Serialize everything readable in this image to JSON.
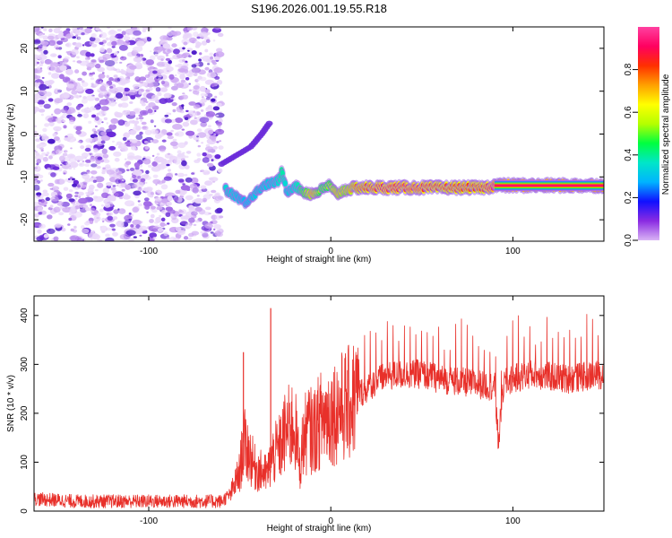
{
  "title": "S196.2026.001.19.55.R18",
  "colors": {
    "snr_line": "#e8302a",
    "spectrogram_noise": [
      "#e9d6fa",
      "#cfaaf3",
      "#a26ae6",
      "#6a2bd9",
      "#4a18c8"
    ],
    "colorbar": [
      "#d9b3f5",
      "#8a2be2",
      "#1010ff",
      "#00b4ff",
      "#00e6c8",
      "#00ff40",
      "#b4ff00",
      "#ffff00",
      "#ffa000",
      "#ff3000",
      "#ff0060",
      "#ff40a0"
    ]
  },
  "chart_data": [
    {
      "type": "heatmap",
      "name": "spectrogram",
      "xlabel": "Height of straight line (km)",
      "ylabel": "Frequency (Hz)",
      "xlim": [
        -163,
        150
      ],
      "ylim": [
        -25,
        25
      ],
      "xticks": [
        -100,
        0,
        100
      ],
      "yticks": [
        20,
        10,
        0,
        -10,
        -20
      ],
      "colorbar": {
        "label": "Normalized spectral amplitude",
        "range": [
          0,
          1
        ],
        "ticks": [
          "0.0",
          "0.2",
          "0.4",
          "0.6",
          "0.8"
        ]
      },
      "noise_region": {
        "x_from": -163,
        "x_to": -60,
        "description_level": "low"
      },
      "ridge": [
        [
          -58,
          -13
        ],
        [
          -52,
          -14.5
        ],
        [
          -47,
          -16
        ],
        [
          -42,
          -14
        ],
        [
          -37,
          -12
        ],
        [
          -33,
          -11.5
        ],
        [
          -29,
          -11
        ],
        [
          -27,
          -9
        ],
        [
          -24,
          -13.5
        ],
        [
          -20,
          -12
        ],
        [
          -15,
          -13.5
        ],
        [
          -10,
          -14
        ],
        [
          -5,
          -13
        ],
        [
          -1,
          -12
        ],
        [
          3,
          -14
        ],
        [
          8,
          -13
        ],
        [
          14,
          -12.5
        ],
        [
          20,
          -12.5
        ],
        [
          30,
          -12.5
        ],
        [
          45,
          -12.5
        ],
        [
          60,
          -12.5
        ],
        [
          75,
          -12.5
        ],
        [
          85,
          -12.5
        ],
        [
          90,
          -12
        ],
        [
          110,
          -12
        ],
        [
          130,
          -12
        ],
        [
          150,
          -12
        ]
      ],
      "ridge_amplitude": [
        0.35,
        0.3,
        0.25,
        0.3,
        0.3,
        0.3,
        0.35,
        0.45,
        0.3,
        0.35,
        0.5,
        0.75,
        0.5,
        0.55,
        0.7,
        0.65,
        0.8,
        0.85,
        0.9,
        0.9,
        0.85,
        0.85,
        0.85,
        1.0,
        1.0,
        1.0,
        1.0
      ],
      "branch_to_upper": [
        [
          -60,
          -7
        ],
        [
          -52,
          -5
        ],
        [
          -44,
          -3
        ],
        [
          -38,
          0
        ],
        [
          -33,
          3
        ]
      ]
    },
    {
      "type": "line",
      "name": "snr",
      "xlabel": "Height of straight line (km)",
      "ylabel": "SNR (10 * v/v)",
      "xlim": [
        -163,
        150
      ],
      "ylim": [
        0,
        440
      ],
      "xticks": [
        -100,
        0,
        100
      ],
      "yticks": [
        0,
        100,
        200,
        300,
        400
      ],
      "series": [
        {
          "name": "SNR",
          "x": [
            -163,
            -140,
            -120,
            -100,
            -80,
            -60,
            -55,
            -50,
            -48,
            -45,
            -42,
            -38,
            -35,
            -32,
            -28,
            -25,
            -20,
            -17,
            -15,
            -12,
            -10,
            -5,
            0,
            5,
            10,
            15,
            20,
            25,
            30,
            40,
            50,
            60,
            70,
            80,
            90,
            92,
            95,
            100,
            110,
            120,
            130,
            140,
            150
          ],
          "values": [
            25,
            20,
            20,
            20,
            20,
            20,
            35,
            80,
            140,
            120,
            90,
            80,
            75,
            110,
            130,
            160,
            180,
            90,
            150,
            170,
            160,
            190,
            200,
            210,
            220,
            240,
            250,
            265,
            275,
            280,
            280,
            270,
            265,
            260,
            255,
            140,
            260,
            270,
            280,
            275,
            270,
            275,
            280
          ]
        }
      ],
      "annotations": [
        {
          "x": -48,
          "y": 325
        },
        {
          "x": -33,
          "y": 415
        },
        {
          "x": 92,
          "y": 128
        }
      ]
    }
  ]
}
